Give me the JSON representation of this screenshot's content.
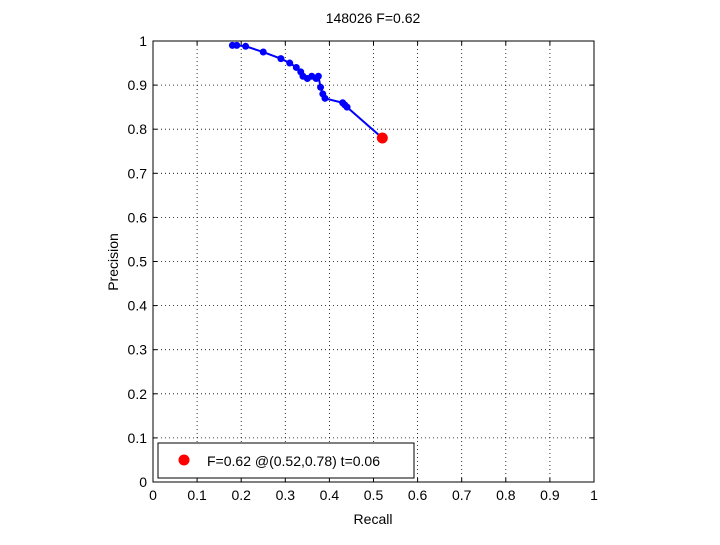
{
  "chart_data": {
    "type": "line",
    "title": "148026 F=0.62",
    "xlabel": "Recall",
    "ylabel": "Precision",
    "xlim": [
      0,
      1
    ],
    "ylim": [
      0,
      1
    ],
    "grid": true,
    "xticks": [
      "0",
      "0.1",
      "0.2",
      "0.3",
      "0.4",
      "0.5",
      "0.6",
      "0.7",
      "0.8",
      "0.9",
      "1"
    ],
    "yticks": [
      "0",
      "0.1",
      "0.2",
      "0.3",
      "0.4",
      "0.5",
      "0.6",
      "0.7",
      "0.8",
      "0.9",
      "1"
    ],
    "series": [
      {
        "color": "#0000ff",
        "points": [
          [
            0.18,
            0.99
          ],
          [
            0.19,
            0.99
          ],
          [
            0.21,
            0.988
          ],
          [
            0.25,
            0.975
          ],
          [
            0.29,
            0.96
          ],
          [
            0.31,
            0.95
          ],
          [
            0.325,
            0.94
          ],
          [
            0.335,
            0.93
          ],
          [
            0.34,
            0.92
          ],
          [
            0.35,
            0.915
          ],
          [
            0.36,
            0.92
          ],
          [
            0.37,
            0.915
          ],
          [
            0.375,
            0.92
          ],
          [
            0.38,
            0.895
          ],
          [
            0.385,
            0.88
          ],
          [
            0.39,
            0.87
          ],
          [
            0.43,
            0.86
          ],
          [
            0.435,
            0.855
          ],
          [
            0.44,
            0.85
          ],
          [
            0.52,
            0.78
          ]
        ]
      }
    ],
    "optimum": {
      "x": 0.52,
      "y": 0.78,
      "color": "#ff0000"
    },
    "legend": {
      "position": "bottom-left",
      "entries": [
        "F=0.62 @(0.52,0.78) t=0.06"
      ]
    }
  }
}
